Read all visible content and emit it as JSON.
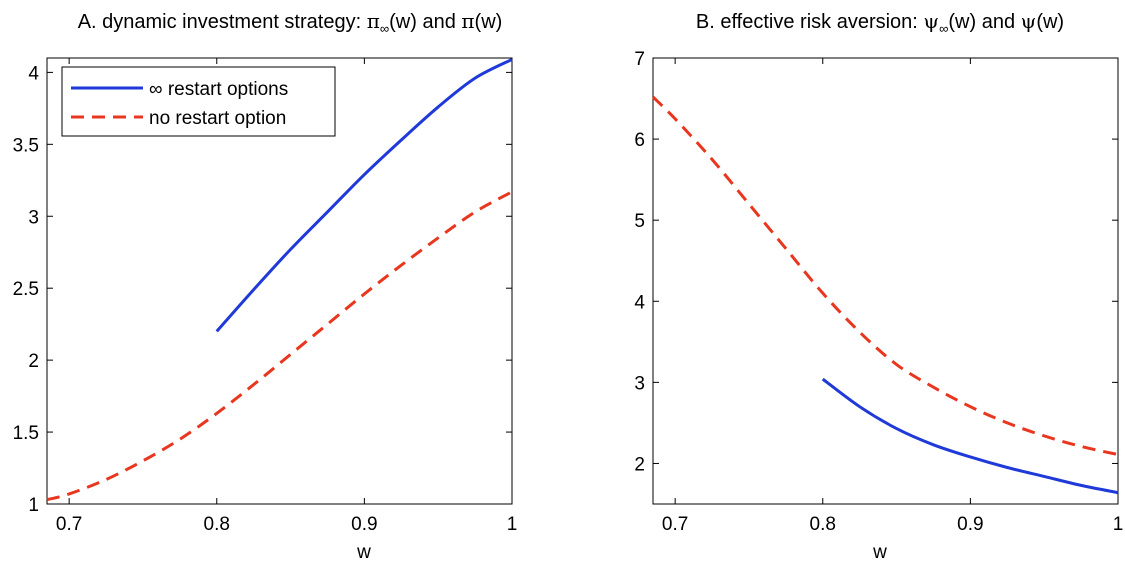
{
  "chart_data": [
    {
      "type": "line",
      "title": {
        "prefix": "A. dynamic investment strategy: ",
        "sym": "π",
        "sub": "∞",
        "arg1": "(w) and ",
        "sym2": "π",
        "arg2": "(w)"
      },
      "xlabel": "w",
      "ylabel": "",
      "xlim": [
        0.685,
        1.0
      ],
      "ylim": [
        1.0,
        4.1
      ],
      "xticks": [
        0.7,
        0.8,
        0.9,
        1.0
      ],
      "xtick_labels": [
        "0.7",
        "0.8",
        "0.9",
        "1"
      ],
      "yticks": [
        1,
        1.5,
        2,
        2.5,
        3,
        3.5,
        4
      ],
      "ytick_labels": [
        "1",
        "1.5",
        "2",
        "2.5",
        "3",
        "3.5",
        "4"
      ],
      "grid": false,
      "legend": {
        "placement": "top-left"
      },
      "series": [
        {
          "name": "∞ restart options",
          "color": "#1f3ad8",
          "dash": "solid",
          "x": [
            0.8,
            0.825,
            0.85,
            0.875,
            0.9,
            0.925,
            0.95,
            0.975,
            1.0
          ],
          "y": [
            2.2,
            2.49,
            2.77,
            3.03,
            3.29,
            3.53,
            3.76,
            3.96,
            4.09
          ]
        },
        {
          "name": "no restart option",
          "color": "#e8361f",
          "dash": "dashed",
          "x": [
            0.685,
            0.7,
            0.725,
            0.75,
            0.775,
            0.8,
            0.825,
            0.85,
            0.875,
            0.9,
            0.925,
            0.95,
            0.975,
            1.0
          ],
          "y": [
            1.03,
            1.07,
            1.17,
            1.3,
            1.45,
            1.63,
            1.83,
            2.04,
            2.25,
            2.46,
            2.66,
            2.85,
            3.03,
            3.17
          ]
        }
      ]
    },
    {
      "type": "line",
      "title": {
        "prefix": "B. effective risk aversion: ",
        "sym": "ψ",
        "sub": "∞",
        "arg1": "(w) and ",
        "sym2": "ψ",
        "arg2": "(w)"
      },
      "xlabel": "w",
      "ylabel": "",
      "xlim": [
        0.685,
        1.0
      ],
      "ylim": [
        1.5,
        7.0
      ],
      "xticks": [
        0.7,
        0.8,
        0.9,
        1.0
      ],
      "xtick_labels": [
        "0.7",
        "0.8",
        "0.9",
        "1"
      ],
      "yticks": [
        2,
        3,
        4,
        5,
        6,
        7
      ],
      "ytick_labels": [
        "2",
        "3",
        "4",
        "5",
        "6",
        "7"
      ],
      "grid": false,
      "series": [
        {
          "name": "∞ restart options",
          "color": "#1f3ad8",
          "dash": "solid",
          "x": [
            0.8,
            0.825,
            0.85,
            0.875,
            0.9,
            0.925,
            0.95,
            0.975,
            1.0
          ],
          "y": [
            3.04,
            2.7,
            2.43,
            2.23,
            2.08,
            1.95,
            1.84,
            1.73,
            1.64
          ]
        },
        {
          "name": "no restart option",
          "color": "#e8361f",
          "dash": "dashed",
          "x": [
            0.685,
            0.7,
            0.725,
            0.75,
            0.775,
            0.8,
            0.825,
            0.85,
            0.875,
            0.9,
            0.925,
            0.95,
            0.975,
            1.0
          ],
          "y": [
            6.52,
            6.25,
            5.75,
            5.2,
            4.65,
            4.1,
            3.62,
            3.22,
            2.94,
            2.7,
            2.5,
            2.34,
            2.21,
            2.11
          ]
        }
      ]
    }
  ]
}
